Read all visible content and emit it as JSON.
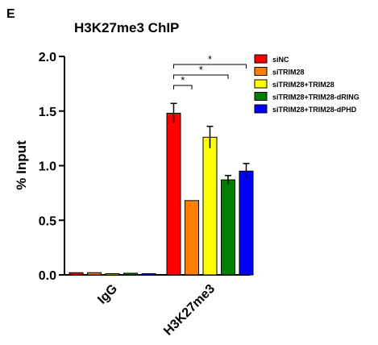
{
  "panel_label": "E",
  "chart_data": {
    "type": "bar",
    "title": "H3K27me3 ChIP",
    "xlabel": "",
    "ylabel": "% Input",
    "ylim": [
      0,
      2.0
    ],
    "yticks": [
      "0.0",
      "0.5",
      "1.0",
      "1.5",
      "2.0"
    ],
    "categories": [
      "IgG",
      "H3K27me3"
    ],
    "series": [
      {
        "name": "siNC",
        "color": "#ff0000",
        "values": [
          0.02,
          1.48
        ],
        "errors": [
          0.0,
          0.09
        ]
      },
      {
        "name": "siTRIM28",
        "color": "#ff8000",
        "values": [
          0.02,
          0.68
        ],
        "errors": [
          0.0,
          0.0
        ]
      },
      {
        "name": "siTRIM28+TRIM28",
        "color": "#ffff00",
        "values": [
          0.01,
          1.26
        ],
        "errors": [
          0.0,
          0.1
        ]
      },
      {
        "name": "siTRIM28+TRIM28-dRING",
        "color": "#008000",
        "values": [
          0.015,
          0.87
        ],
        "errors": [
          0.0,
          0.04
        ]
      },
      {
        "name": "siTRIM28+TRIM28-dPHD",
        "color": "#0000ff",
        "values": [
          0.01,
          0.95
        ],
        "errors": [
          0.0,
          0.07
        ]
      }
    ],
    "significance": [
      {
        "label": "*",
        "from": "siNC",
        "to": "siTRIM28"
      },
      {
        "label": "*",
        "from": "siNC",
        "to": "siTRIM28+TRIM28-dRING"
      },
      {
        "label": "*",
        "from": "siNC",
        "to": "siTRIM28+TRIM28-dPHD"
      }
    ],
    "grid": false,
    "legend_position": "top-right"
  }
}
